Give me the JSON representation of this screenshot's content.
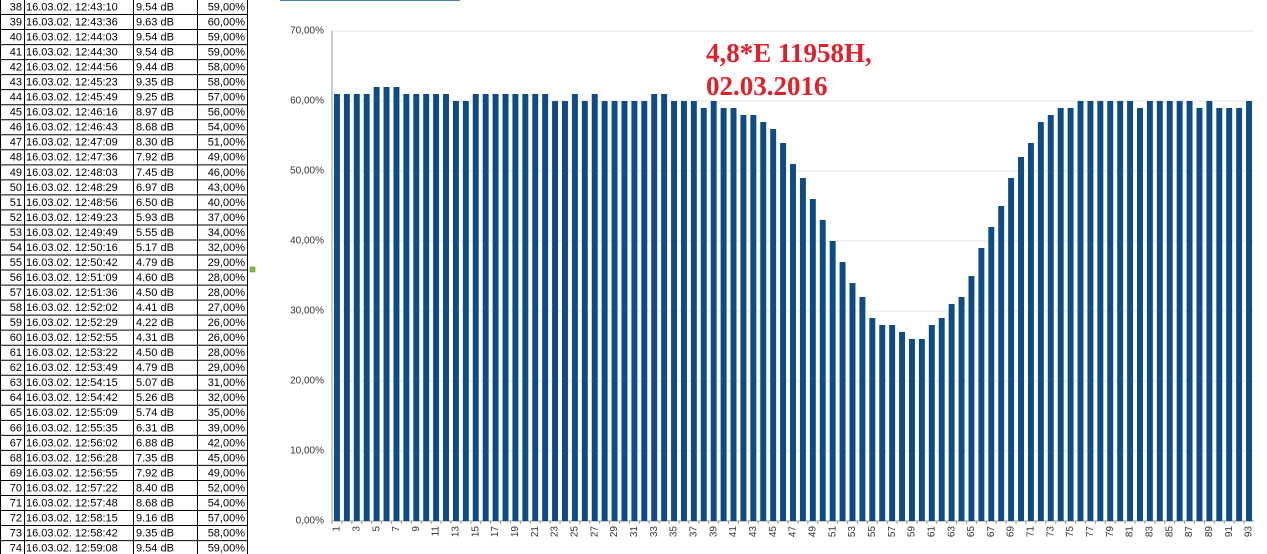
{
  "table": {
    "rows": [
      [
        38,
        "16.03.02. 12:43:10",
        "9.54 dB",
        "59,00%"
      ],
      [
        39,
        "16.03.02. 12:43:36",
        "9.63 dB",
        "60,00%"
      ],
      [
        40,
        "16.03.02. 12:44:03",
        "9.54 dB",
        "59,00%"
      ],
      [
        41,
        "16.03.02. 12:44:30",
        "9.54 dB",
        "59,00%"
      ],
      [
        42,
        "16.03.02. 12:44:56",
        "9.44 dB",
        "58,00%"
      ],
      [
        43,
        "16.03.02. 12:45:23",
        "9.35 dB",
        "58,00%"
      ],
      [
        44,
        "16.03.02. 12:45:49",
        "9.25 dB",
        "57,00%"
      ],
      [
        45,
        "16.03.02. 12:46:16",
        "8.97 dB",
        "56,00%"
      ],
      [
        46,
        "16.03.02. 12:46:43",
        "8.68 dB",
        "54,00%"
      ],
      [
        47,
        "16.03.02. 12:47:09",
        "8.30 dB",
        "51,00%"
      ],
      [
        48,
        "16.03.02. 12:47:36",
        "7.92 dB",
        "49,00%"
      ],
      [
        49,
        "16.03.02. 12:48:03",
        "7.45 dB",
        "46,00%"
      ],
      [
        50,
        "16.03.02. 12:48:29",
        "6.97 dB",
        "43,00%"
      ],
      [
        51,
        "16.03.02. 12:48:56",
        "6.50 dB",
        "40,00%"
      ],
      [
        52,
        "16.03.02. 12:49:23",
        "5.93 dB",
        "37,00%"
      ],
      [
        53,
        "16.03.02. 12:49:49",
        "5.55 dB",
        "34,00%"
      ],
      [
        54,
        "16.03.02. 12:50:16",
        "5.17 dB",
        "32,00%"
      ],
      [
        55,
        "16.03.02. 12:50:42",
        "4.79 dB",
        "29,00%"
      ],
      [
        56,
        "16.03.02. 12:51:09",
        "4.60 dB",
        "28,00%"
      ],
      [
        57,
        "16.03.02. 12:51:36",
        "4.50 dB",
        "28,00%"
      ],
      [
        58,
        "16.03.02. 12:52:02",
        "4.41 dB",
        "27,00%"
      ],
      [
        59,
        "16.03.02. 12:52:29",
        "4.22 dB",
        "26,00%"
      ],
      [
        60,
        "16.03.02. 12:52:55",
        "4.31 dB",
        "26,00%"
      ],
      [
        61,
        "16.03.02. 12:53:22",
        "4.50 dB",
        "28,00%"
      ],
      [
        62,
        "16.03.02. 12:53:49",
        "4.79 dB",
        "29,00%"
      ],
      [
        63,
        "16.03.02. 12:54:15",
        "5.07 dB",
        "31,00%"
      ],
      [
        64,
        "16.03.02. 12:54:42",
        "5.26 dB",
        "32,00%"
      ],
      [
        65,
        "16.03.02. 12:55:09",
        "5.74 dB",
        "35,00%"
      ],
      [
        66,
        "16.03.02. 12:55:35",
        "6.31 dB",
        "39,00%"
      ],
      [
        67,
        "16.03.02. 12:56:02",
        "6.88 dB",
        "42,00%"
      ],
      [
        68,
        "16.03.02. 12:56:28",
        "7.35 dB",
        "45,00%"
      ],
      [
        69,
        "16.03.02. 12:56:55",
        "7.92 dB",
        "49,00%"
      ],
      [
        70,
        "16.03.02. 12:57:22",
        "8.40 dB",
        "52,00%"
      ],
      [
        71,
        "16.03.02. 12:57:48",
        "8.68 dB",
        "54,00%"
      ],
      [
        72,
        "16.03.02. 12:58:15",
        "9.16 dB",
        "57,00%"
      ],
      [
        73,
        "16.03.02. 12:58:42",
        "9.35 dB",
        "58,00%"
      ],
      [
        74,
        "16.03.02. 12:59:08",
        "9.54 dB",
        "59,00%"
      ]
    ]
  },
  "chart_data": {
    "type": "bar",
    "title_lines": [
      "4,8*E 11958H,",
      "02.03.2016"
    ],
    "categories": [
      1,
      null,
      3,
      null,
      5,
      null,
      7,
      null,
      9,
      null,
      11,
      null,
      13,
      null,
      15,
      null,
      17,
      null,
      19,
      null,
      21,
      null,
      23,
      null,
      25,
      null,
      27,
      null,
      29,
      null,
      31,
      null,
      33,
      null,
      35,
      null,
      37,
      null,
      39,
      null,
      41,
      null,
      43,
      null,
      45,
      null,
      47,
      null,
      49,
      null,
      51,
      null,
      53,
      null,
      55,
      null,
      57,
      null,
      59,
      null,
      61,
      null,
      63,
      null,
      65,
      null,
      67,
      null,
      69,
      null,
      71,
      null,
      73,
      null,
      75,
      null,
      77,
      null,
      79,
      null,
      81,
      null,
      83,
      null,
      85,
      null,
      87,
      null,
      89,
      null,
      91,
      null,
      93
    ],
    "values": [
      61,
      61,
      61,
      61,
      62,
      62,
      62,
      61,
      61,
      61,
      61,
      61,
      60,
      60,
      61,
      61,
      61,
      61,
      61,
      61,
      61,
      61,
      60,
      60,
      61,
      60,
      61,
      60,
      60,
      60,
      60,
      60,
      61,
      61,
      60,
      60,
      60,
      59,
      60,
      59,
      59,
      58,
      58,
      57,
      56,
      54,
      51,
      49,
      46,
      43,
      40,
      37,
      34,
      32,
      29,
      28,
      28,
      27,
      26,
      26,
      28,
      29,
      31,
      32,
      35,
      39,
      42,
      45,
      49,
      52,
      54,
      57,
      58,
      59,
      59,
      60,
      60,
      60,
      60,
      60,
      60,
      59,
      60,
      60,
      60,
      60,
      60,
      59,
      60,
      59,
      59,
      59,
      60
    ],
    "color": "#0f4c85",
    "ylim": [
      0,
      70
    ],
    "yticks": [
      {
        "value": 0,
        "label": "0,00%"
      },
      {
        "value": 10,
        "label": "10,00%"
      },
      {
        "value": 20,
        "label": "20,00%"
      },
      {
        "value": 30,
        "label": "30,00%"
      },
      {
        "value": 40,
        "label": "40,00%"
      },
      {
        "value": 50,
        "label": "50,00%"
      },
      {
        "value": 60,
        "label": "60,00%"
      },
      {
        "value": 70,
        "label": "70,00%"
      }
    ],
    "grid": true
  }
}
